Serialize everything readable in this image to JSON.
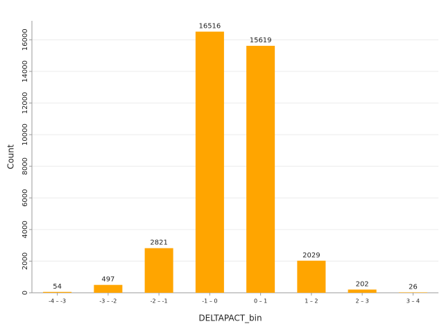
{
  "chart_data": {
    "type": "bar",
    "x_label": "DELTAPACT_bin",
    "y_label": "Count",
    "categories": [
      "-4 – -3",
      "-3 – -2",
      "-2 – -1",
      "-1 – 0",
      "0 – 1",
      "1 – 2",
      "2 – 3",
      "3 – 4"
    ],
    "values": [
      54,
      497,
      2821,
      16516,
      15619,
      2029,
      202,
      26
    ],
    "color": "#ffa500",
    "ylim": [
      0,
      17200
    ],
    "yticks": [
      0,
      2000,
      4000,
      6000,
      8000,
      10000,
      12000,
      14000,
      16000
    ],
    "grid": true
  }
}
